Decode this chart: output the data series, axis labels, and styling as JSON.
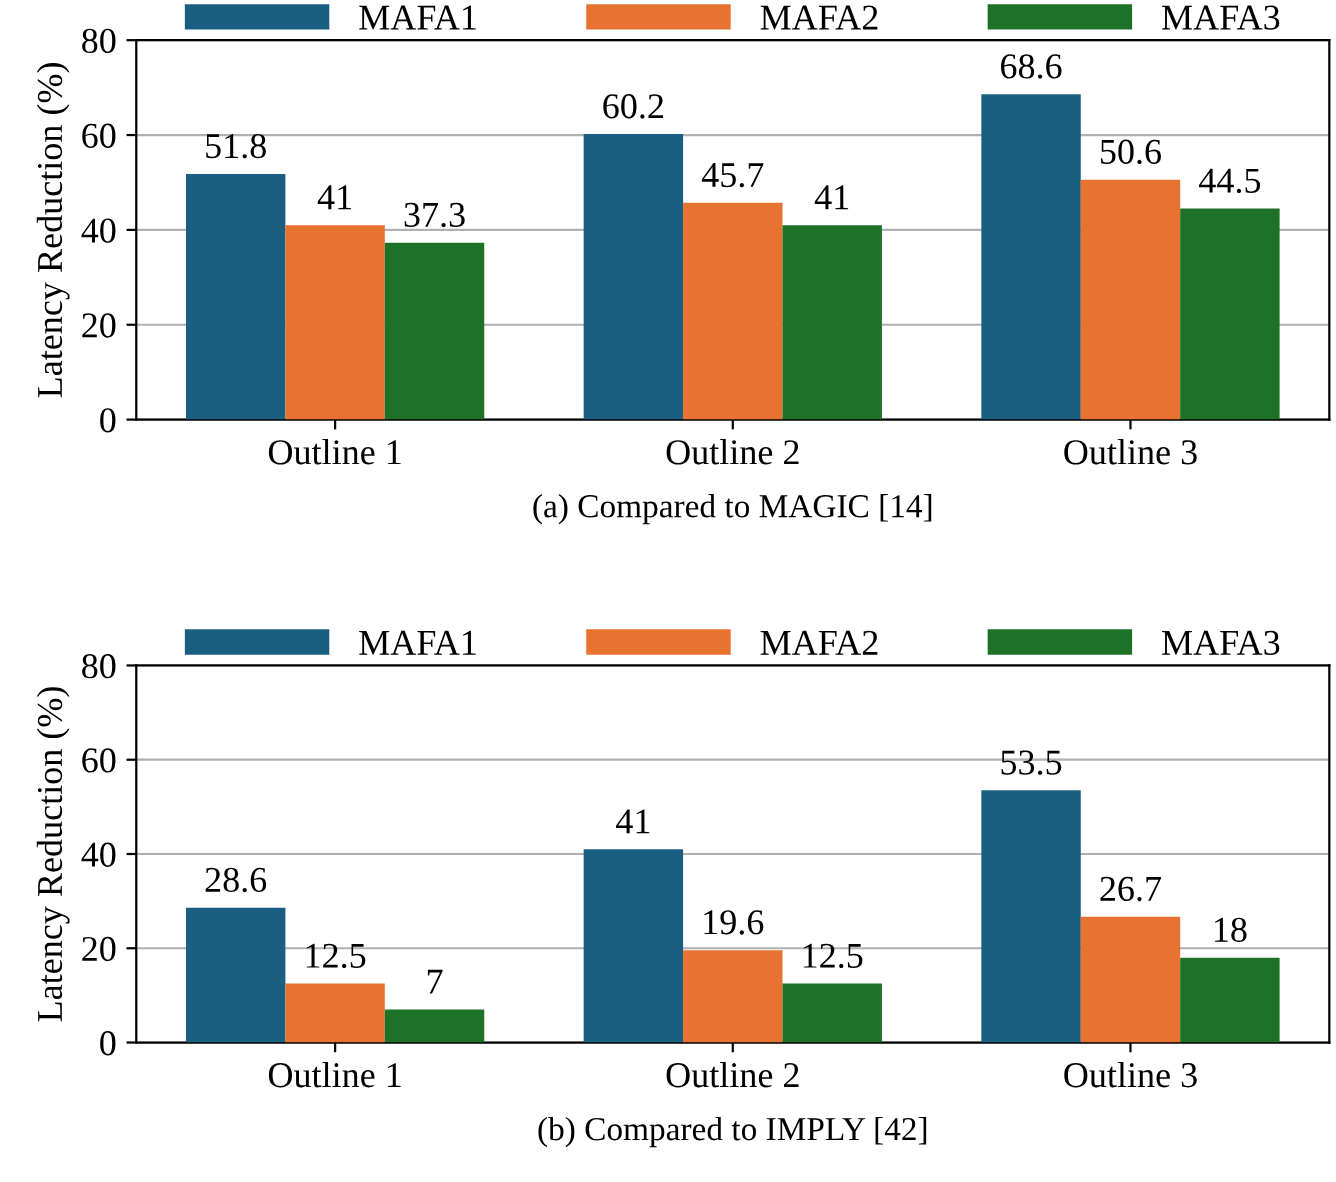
{
  "chart_data": [
    {
      "type": "bar",
      "xlabel": "(a) Compared to MAGIC [14]",
      "ylabel": "Latency Reduction (%)",
      "categories": [
        "Outline 1",
        "Outline 2",
        "Outline 3"
      ],
      "series": [
        {
          "name": "MAFA1",
          "color": "#1a5e82",
          "values": [
            51.8,
            60.2,
            68.6
          ]
        },
        {
          "name": "MAFA2",
          "color": "#e87331",
          "values": [
            41,
            45.7,
            50.6
          ]
        },
        {
          "name": "MAFA3",
          "color": "#1e7228",
          "values": [
            37.3,
            41,
            44.5
          ]
        }
      ],
      "ylim": [
        0,
        80
      ],
      "yticks": [
        0,
        20,
        40,
        60,
        80
      ],
      "grid": "y",
      "legend": "top",
      "data_labels": true
    },
    {
      "type": "bar",
      "xlabel": "(b) Compared to IMPLY [42]",
      "ylabel": "Latency Reduction (%)",
      "categories": [
        "Outline 1",
        "Outline 2",
        "Outline 3"
      ],
      "series": [
        {
          "name": "MAFA1",
          "color": "#1a5e82",
          "values": [
            28.6,
            41,
            53.5
          ]
        },
        {
          "name": "MAFA2",
          "color": "#e87331",
          "values": [
            12.5,
            19.6,
            26.7
          ]
        },
        {
          "name": "MAFA3",
          "color": "#1e7228",
          "values": [
            7,
            12.5,
            18
          ]
        }
      ],
      "ylim": [
        0,
        80
      ],
      "yticks": [
        0,
        20,
        40,
        60,
        80
      ],
      "grid": "y",
      "legend": "top",
      "data_labels": true
    }
  ]
}
